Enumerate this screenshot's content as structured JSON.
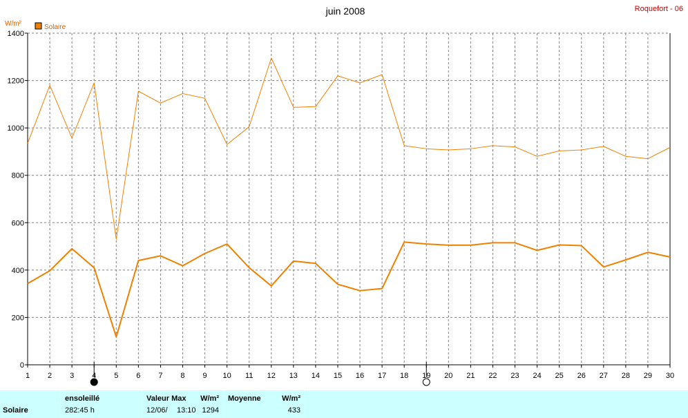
{
  "chart_data": {
    "type": "line",
    "title": "juin 2008",
    "location": "Roquefort - 06",
    "ylabel": "W/m²",
    "legend_label": "Solaire",
    "ylim": [
      0,
      1400
    ],
    "yticks": [
      0,
      200,
      400,
      600,
      800,
      1000,
      1200,
      1400
    ],
    "x": [
      1,
      2,
      3,
      4,
      5,
      6,
      7,
      8,
      9,
      10,
      11,
      12,
      13,
      14,
      15,
      16,
      17,
      18,
      19,
      20,
      21,
      22,
      23,
      24,
      25,
      26,
      27,
      28,
      29,
      30
    ],
    "series": [
      {
        "role": "max",
        "color": "#f08000",
        "values": [
          935,
          1180,
          957,
          1190,
          530,
          1155,
          1105,
          1145,
          1125,
          930,
          1005,
          1295,
          1087,
          1090,
          1220,
          1190,
          1225,
          925,
          912,
          907,
          912,
          925,
          920,
          880,
          903,
          907,
          922,
          880,
          870,
          918
        ]
      },
      {
        "role": "mean",
        "color": "#f08000",
        "values": [
          343,
          397,
          490,
          410,
          118,
          440,
          460,
          418,
          470,
          510,
          410,
          333,
          438,
          428,
          340,
          313,
          322,
          518,
          510,
          505,
          505,
          515,
          515,
          483,
          506,
          503,
          413,
          443,
          475,
          455
        ]
      }
    ],
    "moon_phases": [
      {
        "day": 4,
        "phase": "new-moon"
      },
      {
        "day": 19,
        "phase": "full-moon"
      }
    ]
  },
  "colors": {
    "series": "#f08000",
    "legend_text": "#e06000",
    "location": "#cc0000",
    "footer_bg": "#ccffff"
  },
  "footer": {
    "name": "Solaire",
    "sun_label": "ensoleillé",
    "sun_value": "282:45 h",
    "max_label": "Valeur Max",
    "max_unit": "W/m²",
    "max_date": "12/06/",
    "max_time": "13:10",
    "max_value": "1294",
    "mean_label": "Moyenne",
    "mean_unit": "W/m²",
    "mean_value": "433"
  }
}
